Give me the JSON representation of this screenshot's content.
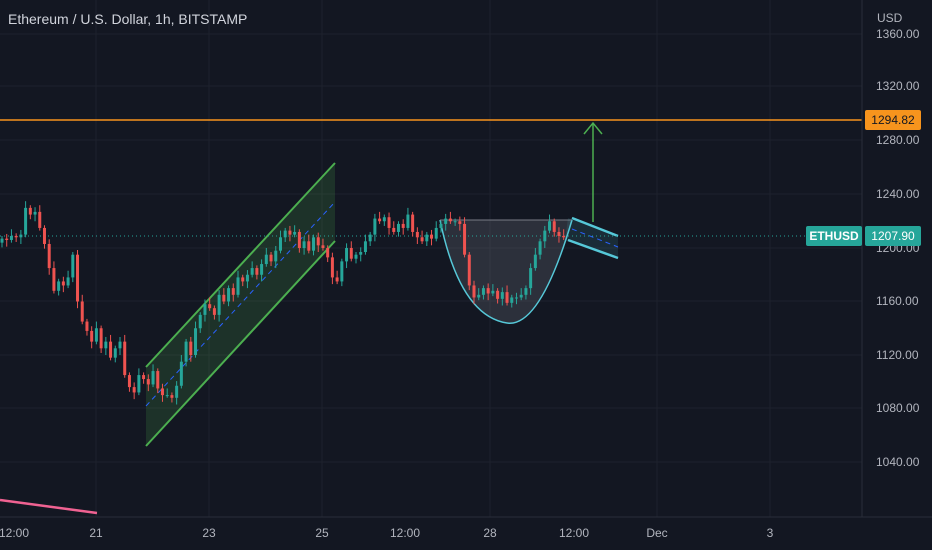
{
  "header": {
    "symbol_title": "Ethereum / U.S. Dollar, 1h, BITSTAMP",
    "currency": "USD"
  },
  "price_axis": {
    "labels": [
      "1360.00",
      "1320.00",
      "1280.00",
      "1240.00",
      "1200.00",
      "1160.00",
      "1120.00",
      "1080.00",
      "1040.00"
    ],
    "values": [
      1360,
      1320,
      1280,
      1240,
      1200,
      1160,
      1120,
      1080,
      1040
    ]
  },
  "time_axis": {
    "labels": [
      "12:00",
      "21",
      "23",
      "25",
      "12:00",
      "28",
      "12:00",
      "Dec",
      "3"
    ]
  },
  "horizontal_level": {
    "value": 1294.82,
    "label": "1294.82",
    "color": "#f7941d"
  },
  "last_price": {
    "symbol": "ETHUSD",
    "value": 1207.9,
    "label": "1207.90",
    "color": "#26a69a"
  },
  "colors": {
    "up": "#26a69a",
    "down": "#ef5350",
    "channel": "#4caf50",
    "cup": "#56c8d8",
    "arrow": "#4caf50",
    "trendline": "#f06292"
  },
  "chart_data": {
    "type": "candlestick",
    "y_range": [
      1000,
      1380
    ],
    "x_range": [
      "Nov 20",
      "Dec 3"
    ],
    "series": [
      {
        "values": [
          1207,
          1206,
          1209,
          1208,
          1210,
          1230,
          1225,
          1227,
          1215,
          1203,
          1185,
          1168,
          1175,
          1172,
          1178,
          1195,
          1160,
          1145,
          1138,
          1130,
          1140,
          1125,
          1130,
          1118,
          1125,
          1130,
          1105,
          1096,
          1092,
          1105,
          1102,
          1098,
          1108,
          1095,
          1090,
          1090,
          1088,
          1097,
          1115,
          1130,
          1120,
          1140,
          1150,
          1158,
          1155,
          1150,
          1165,
          1160,
          1170,
          1165,
          1178,
          1175,
          1180,
          1185,
          1180,
          1188,
          1195,
          1190,
          1198,
          1208,
          1213,
          1210,
          1212,
          1200,
          1205,
          1198,
          1208,
          1202,
          1200,
          1193,
          1178,
          1175,
          1190,
          1200,
          1192,
          1195,
          1197,
          1205,
          1210,
          1222,
          1220,
          1223,
          1215,
          1212,
          1218,
          1215,
          1225,
          1212,
          1208,
          1205,
          1210,
          1207,
          1215,
          1218,
          1222,
          1220,
          1220,
          1218,
          1195,
          1172,
          1163,
          1165,
          1170,
          1166,
          1168,
          1162,
          1167,
          1159,
          1163,
          1163,
          1165,
          1170,
          1185,
          1195,
          1205,
          1213,
          1220,
          1212,
          1209,
          1208
        ]
      }
    ],
    "horizontal_level": 1294.82,
    "last_price": 1207.9
  }
}
